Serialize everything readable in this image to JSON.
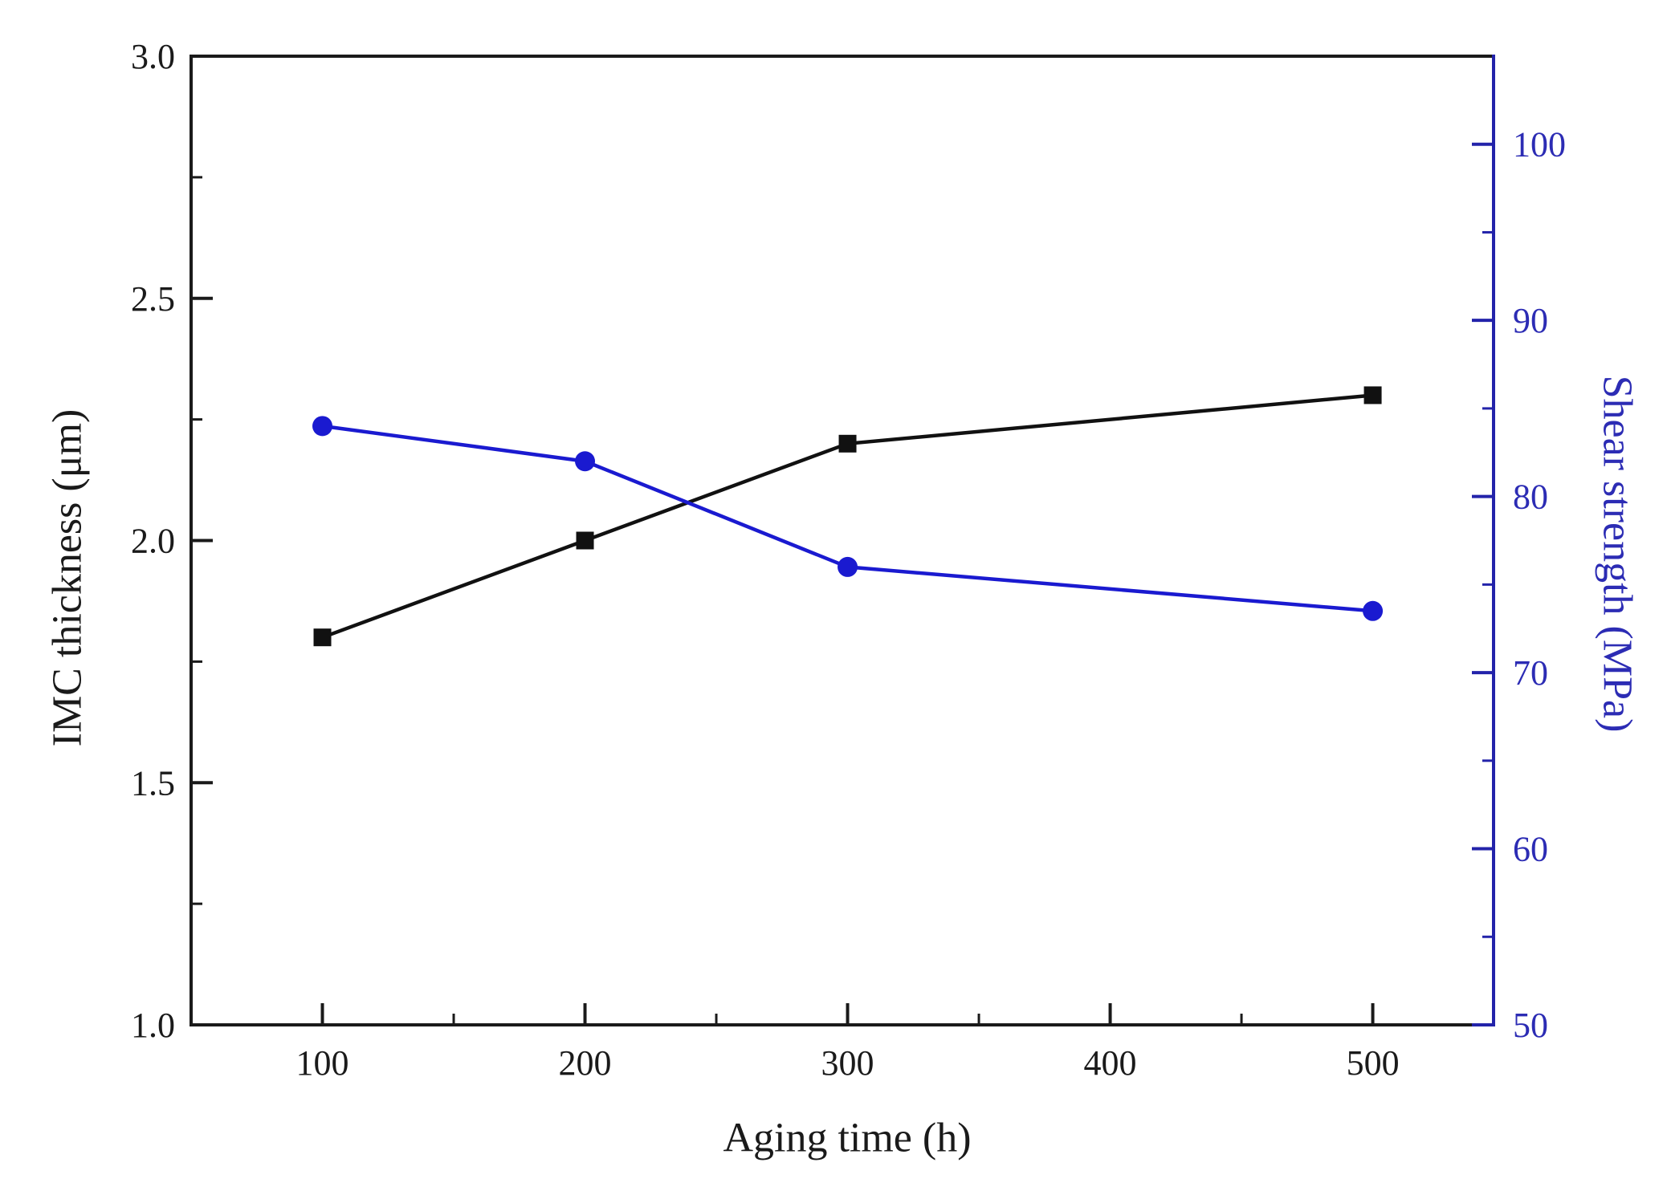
{
  "figure": {
    "background": "#ffffff"
  },
  "chart_data": {
    "type": "line",
    "title": "",
    "xlabel": "Aging time (h)",
    "ylabel_left": "IMC thickness (μm)",
    "ylabel_right": "Shear strength (MPa)",
    "grid": false,
    "legend_position": "none",
    "x": [
      100,
      200,
      300,
      500
    ],
    "series": [
      {
        "name": "IMC thickness",
        "axis": "left",
        "marker": "square",
        "color": "#111111",
        "values": [
          1.8,
          2.0,
          2.2,
          2.3
        ]
      },
      {
        "name": "Shear strength",
        "axis": "right",
        "marker": "circle",
        "color": "#1a1ad0",
        "values": [
          84,
          82,
          76,
          73.5
        ]
      }
    ],
    "x_axis": {
      "min": 50,
      "max": 546,
      "major_ticks": [
        100,
        200,
        300,
        400,
        500
      ],
      "minor_ticks": [
        150,
        250,
        350,
        450
      ],
      "tick_labels": [
        "100",
        "200",
        "300",
        "400",
        "500"
      ]
    },
    "left_axis": {
      "min": 1.0,
      "max": 3.0,
      "major_ticks": [
        1.0,
        1.5,
        2.0,
        2.5,
        3.0
      ],
      "minor_ticks": [
        1.25,
        1.75,
        2.25,
        2.75
      ],
      "tick_labels": [
        "1.0",
        "1.5",
        "2.0",
        "2.5",
        "3.0"
      ]
    },
    "right_axis": {
      "min": 50,
      "max": 105,
      "major_ticks": [
        50,
        60,
        70,
        80,
        90,
        100
      ],
      "minor_ticks": [
        55,
        65,
        75,
        85,
        95
      ],
      "tick_labels": [
        "50",
        "60",
        "70",
        "80",
        "90",
        "100"
      ]
    }
  },
  "colors": {
    "frame_black": "#1a1a1a",
    "axis_blue": "#2323aa",
    "tick_label_black": "#1a1a1a",
    "tick_label_blue": "#2c2cb4",
    "series_black": "#111111",
    "series_blue": "#1a1ad0"
  }
}
